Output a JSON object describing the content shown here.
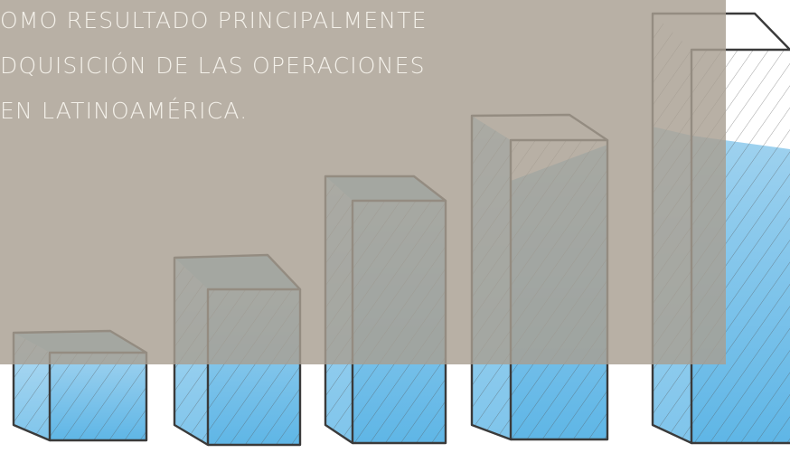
{
  "text": {
    "lines": [
      "OMO RESULTADO PRINCIPALMENTE",
      "DQUISICIÓN DE LAS OPERACIONES",
      "EN LATINOAMÉRICA."
    ]
  }
}
